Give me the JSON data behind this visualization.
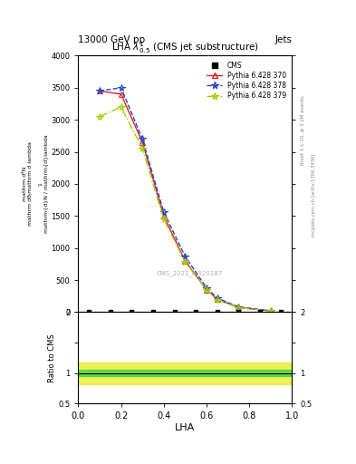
{
  "title": "13000 GeV pp",
  "title_right": "Jets",
  "plot_title": "LHA $\\lambda^{1}_{0.5}$ (CMS jet substructure)",
  "xlabel": "LHA",
  "cms_watermark": "CMS_2021_I1920187",
  "rivet_label": "Rivet 3.1.10, ≥ 3.2M events",
  "mcplots_label": "mcplots.cern.ch [arXiv:1306.3436]",
  "x_data": [
    0.1,
    0.2,
    0.3,
    0.4,
    0.5,
    0.6,
    0.65,
    0.75,
    0.9
  ],
  "pythia370_y": [
    3450,
    3400,
    2650,
    1500,
    800,
    350,
    200,
    70,
    20
  ],
  "pythia378_y": [
    3450,
    3500,
    2700,
    1560,
    870,
    380,
    220,
    80,
    22
  ],
  "pythia379_y": [
    3050,
    3200,
    2550,
    1450,
    780,
    350,
    195,
    68,
    18
  ],
  "pythia370_color": "#dd2222",
  "pythia378_color": "#2244cc",
  "pythia379_color": "#aacc00",
  "cms_color": "#000000",
  "ylim_main": [
    0,
    4000
  ],
  "ylim_ratio": [
    0.5,
    2.0
  ],
  "xlim": [
    0,
    1
  ],
  "ratio_band_green": [
    0.95,
    1.05
  ],
  "ratio_band_yellow": [
    0.82,
    1.18
  ],
  "ratio_line": 1.0,
  "background_color": "#ffffff",
  "yticks_main": [
    0,
    500,
    1000,
    1500,
    2000,
    2500,
    3000,
    3500,
    4000
  ],
  "ytick_labels_main": [
    "0",
    "500",
    "1000",
    "1500",
    "2000",
    "2500",
    "3000",
    "3500",
    "4000"
  ]
}
